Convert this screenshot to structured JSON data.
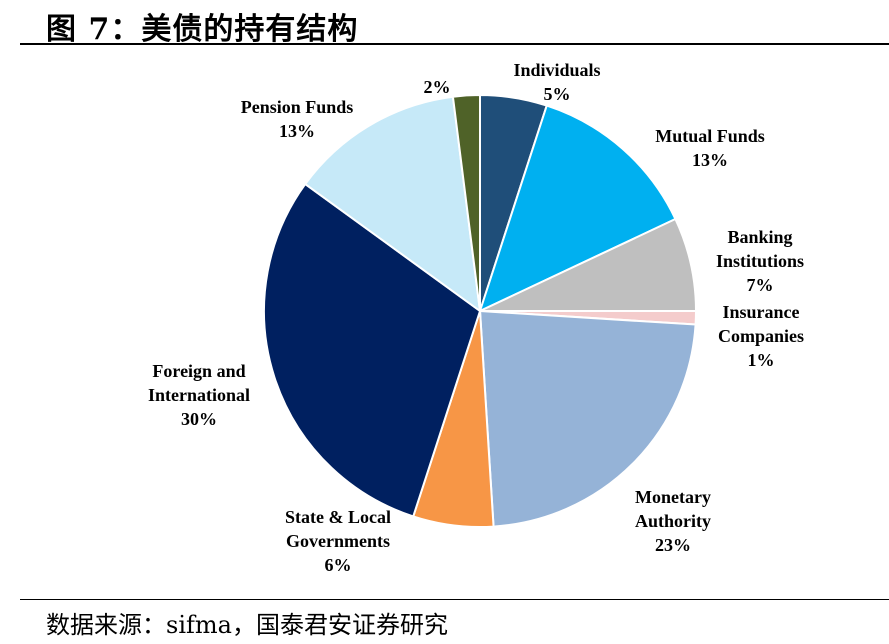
{
  "title": "图 7：美债的持有结构",
  "source": "数据来源：sifma，国泰君安证券研究",
  "chart_data": {
    "type": "pie",
    "start_angle_deg": 0,
    "direction": "clockwise",
    "slices": [
      {
        "name": "Individuals",
        "label_lines": [
          "Individuals",
          "5%"
        ],
        "value": 5,
        "color": "#1f4e79"
      },
      {
        "name": "Mutual Funds",
        "label_lines": [
          "Mutual Funds",
          "13%"
        ],
        "value": 13,
        "color": "#00b0f0"
      },
      {
        "name": "Banking Institutions",
        "label_lines": [
          "Banking",
          "Institutions",
          "7%"
        ],
        "value": 7,
        "color": "#bfbfbf"
      },
      {
        "name": "Insurance Companies",
        "label_lines": [
          "Insurance",
          "Companies",
          "1%"
        ],
        "value": 1,
        "color": "#f4cccc"
      },
      {
        "name": "Monetary Authority",
        "label_lines": [
          "Monetary",
          "Authority",
          "23%"
        ],
        "value": 23,
        "color": "#95b3d7"
      },
      {
        "name": "State & Local Governments",
        "label_lines": [
          "State & Local",
          "Governments",
          "6%"
        ],
        "value": 6,
        "color": "#f79646"
      },
      {
        "name": "Foreign and International",
        "label_lines": [
          "Foreign and",
          "International",
          "30%"
        ],
        "value": 30,
        "color": "#002060"
      },
      {
        "name": "Pension Funds",
        "label_lines": [
          "Pension Funds",
          "13%"
        ],
        "value": 13,
        "color": "#c6e9f8"
      },
      {
        "name": "",
        "label_lines": [
          "2%"
        ],
        "value": 2,
        "color": "#4f6228"
      }
    ]
  }
}
